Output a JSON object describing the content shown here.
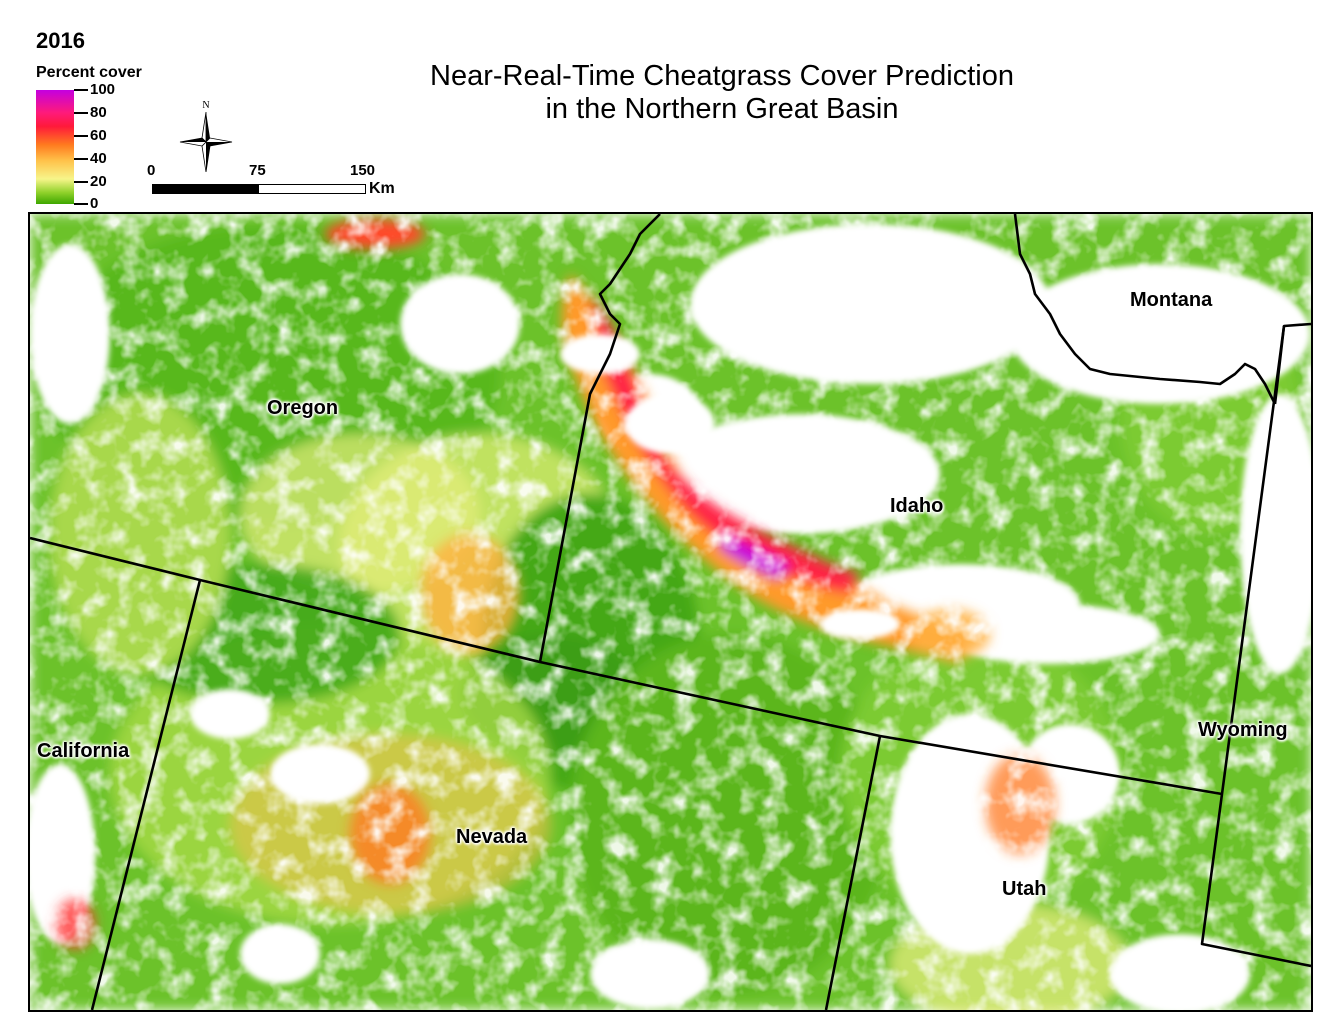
{
  "year": "2016",
  "title_line1": "Near-Real-Time Cheatgrass Cover Prediction",
  "title_line2": "in the Northern Great Basin",
  "legend": {
    "title": "Percent cover",
    "ticks": [
      "100",
      "80",
      "60",
      "40",
      "20",
      "0"
    ],
    "colors": [
      "#c400e0",
      "#ff1a7a",
      "#ff1a3a",
      "#ff7a1f",
      "#ffc24a",
      "#f7f58a",
      "#8fd12a",
      "#3da600"
    ]
  },
  "compass": {
    "north_label": "N",
    "icon": "north-arrow-icon"
  },
  "scale": {
    "labels": [
      "0",
      "75",
      "150"
    ],
    "unit": "Km"
  },
  "states": {
    "oregon": "Oregon",
    "idaho": "Idaho",
    "montana": "Montana",
    "california": "California",
    "nevada": "Nevada",
    "utah": "Utah",
    "wyoming": "Wyoming"
  }
}
